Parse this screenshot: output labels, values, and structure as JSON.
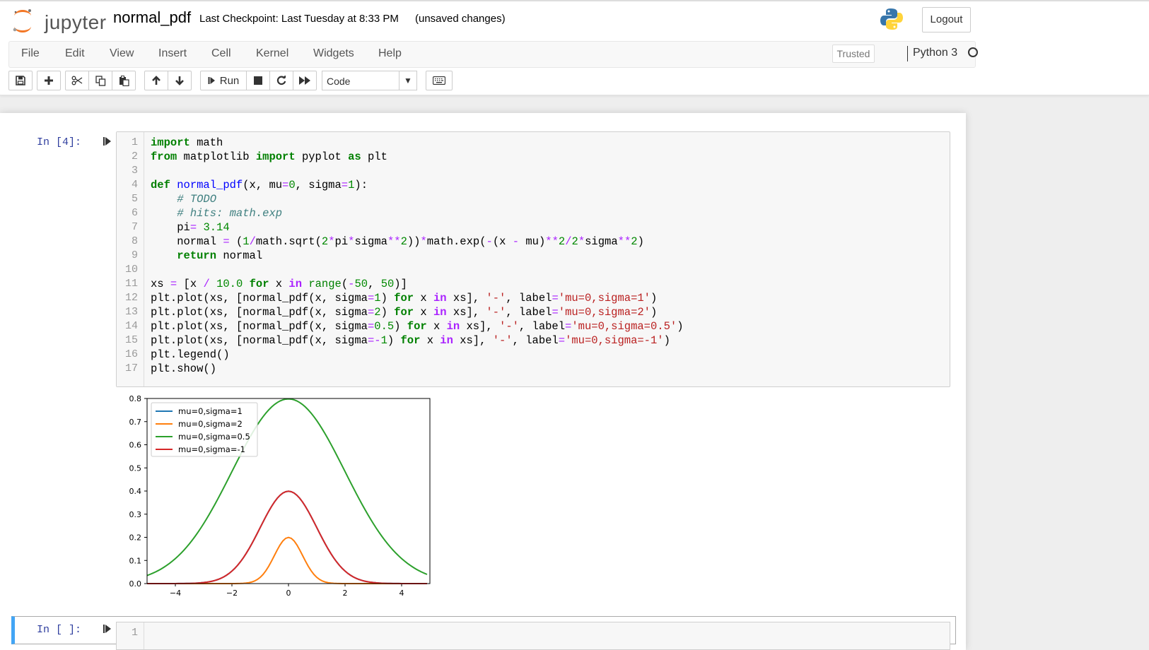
{
  "header": {
    "logo_text": "jupyter",
    "notebook_name": "normal_pdf",
    "checkpoint": "Last Checkpoint: Last Tuesday at 8:33 PM",
    "unsaved": "(unsaved changes)",
    "logout_label": "Logout"
  },
  "menu": {
    "items": [
      "File",
      "Edit",
      "View",
      "Insert",
      "Cell",
      "Kernel",
      "Widgets",
      "Help"
    ],
    "trusted": "Trusted",
    "kernel_name": "Python 3"
  },
  "toolbar": {
    "run_label": "Run",
    "cell_type": "Code"
  },
  "cells": [
    {
      "prompt": "In [4]:",
      "line_numbers": [
        "1",
        "2",
        "3",
        "4",
        "5",
        "6",
        "7",
        "8",
        "9",
        "10",
        "11",
        "12",
        "13",
        "14",
        "15",
        "16",
        "17"
      ]
    },
    {
      "prompt": "In [ ]:",
      "line_numbers": [
        "1"
      ]
    }
  ],
  "chart_data": {
    "type": "line",
    "xlim": [
      -5,
      5
    ],
    "ylim": [
      0,
      0.8
    ],
    "x_ticks": [
      -4,
      -2,
      0,
      2,
      4
    ],
    "x_tick_labels": [
      "−4",
      "−2",
      "0",
      "2",
      "4"
    ],
    "y_ticks": [
      0.0,
      0.1,
      0.2,
      0.3,
      0.4,
      0.5,
      0.6,
      0.7,
      0.8
    ],
    "y_tick_labels": [
      "0.0",
      "0.1",
      "0.2",
      "0.3",
      "0.4",
      "0.5",
      "0.6",
      "0.7",
      "0.8"
    ],
    "grid": false,
    "legend_position": "top-left",
    "x_range": [
      -5.0,
      4.9
    ],
    "series": [
      {
        "name": "mu=0,sigma=1",
        "sigma": 1,
        "color": "#1f77b4"
      },
      {
        "name": "mu=0,sigma=2",
        "sigma": 2,
        "color": "#ff7f0e"
      },
      {
        "name": "mu=0,sigma=0.5",
        "sigma": 0.5,
        "color": "#2ca02c"
      },
      {
        "name": "mu=0,sigma=-1",
        "sigma": -1,
        "color": "#d62728"
      }
    ]
  }
}
